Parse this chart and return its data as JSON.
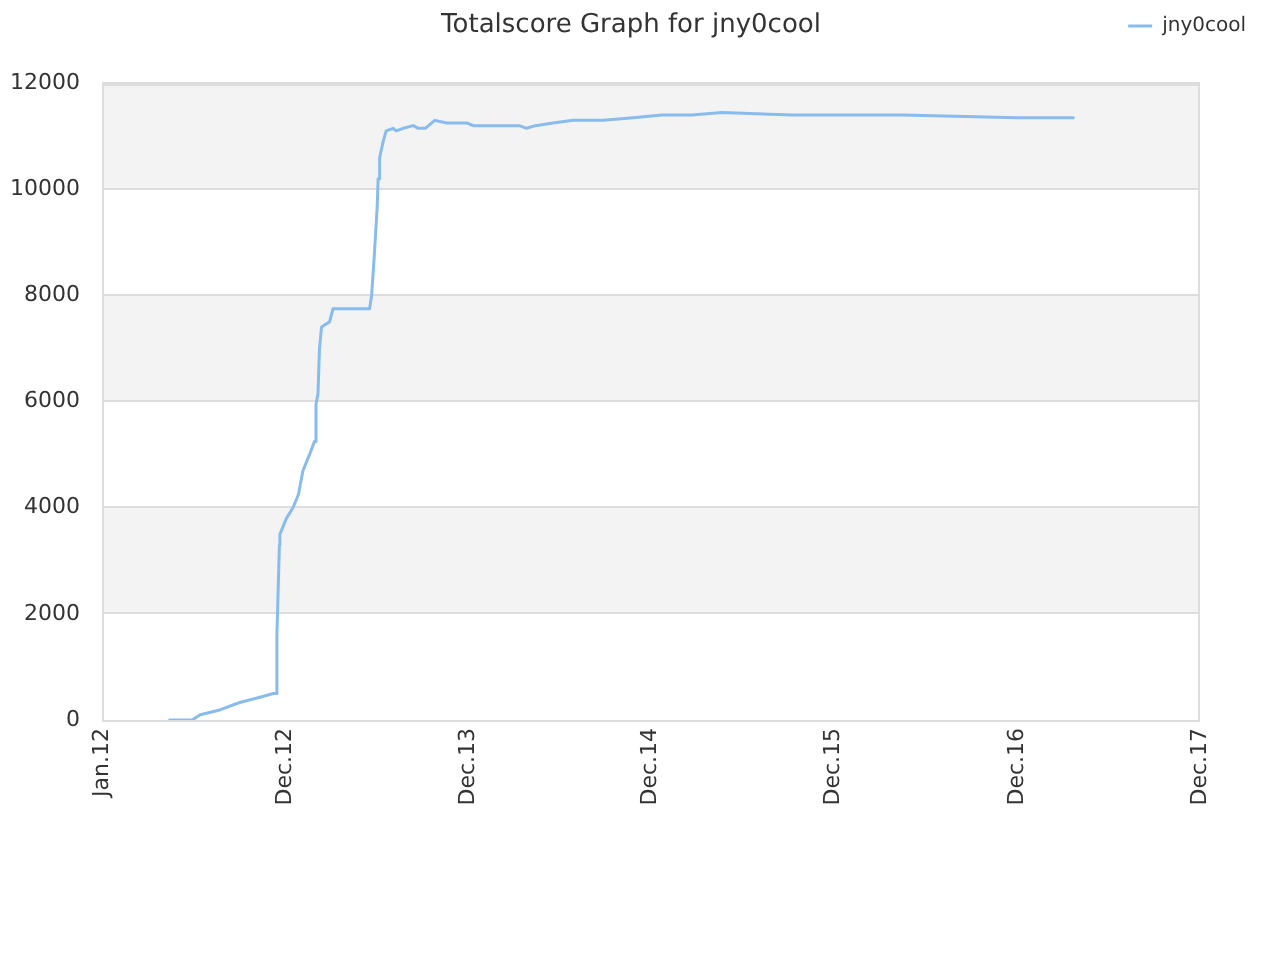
{
  "chart_data": {
    "type": "line",
    "title": "Totalscore Graph for jny0cool",
    "x": [
      "2012-05-15",
      "2012-06-29",
      "2012-07-15",
      "2012-08-23",
      "2012-10-02",
      "2012-11-11",
      "2012-12-08",
      "2012-12-14",
      "2012-12-15",
      "2012-12-20",
      "2012-12-21",
      "2013-01-03",
      "2013-01-16",
      "2013-01-27",
      "2013-02-05",
      "2013-02-18",
      "2013-02-28",
      "2013-03-03",
      "2013-03-07",
      "2013-03-10",
      "2013-03-14",
      "2013-03-21",
      "2013-03-30",
      "2013-04-06",
      "2013-06-18",
      "2013-06-22",
      "2013-06-27",
      "2013-07-03",
      "2013-07-05",
      "2013-07-08",
      "2013-07-15",
      "2013-07-21",
      "2013-08-04",
      "2013-08-10",
      "2013-08-24",
      "2013-09-13",
      "2013-09-23",
      "2013-10-07",
      "2013-10-26",
      "2013-11-19",
      "2013-12-29",
      "2014-01-11",
      "2014-04-13",
      "2014-04-27",
      "2014-05-15",
      "2014-06-19",
      "2014-07-29",
      "2014-09-27",
      "2014-11-26",
      "2015-01-22",
      "2015-03-23",
      "2015-05-22",
      "2015-10-09",
      "2016-05-18",
      "2016-12-30",
      "2017-04-22"
    ],
    "series": [
      {
        "name": "jny0cool",
        "color": "#88bbee",
        "values": [
          0,
          0,
          100,
          190,
          330,
          430,
          500,
          500,
          1600,
          3300,
          3500,
          3800,
          4000,
          4250,
          4700,
          5000,
          5250,
          5950,
          6150,
          7000,
          7400,
          7450,
          7500,
          7750,
          7750,
          8000,
          8700,
          9650,
          10200,
          10600,
          10900,
          11100,
          11150,
          11100,
          11150,
          11200,
          11150,
          11150,
          11300,
          11250,
          11250,
          11200,
          11200,
          11150,
          11200,
          11250,
          11300,
          11300,
          11350,
          11400,
          11400,
          11450,
          11400,
          11400,
          11350,
          11350
        ]
      }
    ],
    "xlim": [
      "2012-01-01",
      "2017-12-31"
    ],
    "xticks": [
      {
        "value": "2012-01-01",
        "label": "Jan.12"
      },
      {
        "value": "2012-12-31",
        "label": "Dec.12"
      },
      {
        "value": "2013-12-31",
        "label": "Dec.13"
      },
      {
        "value": "2014-12-31",
        "label": "Dec.14"
      },
      {
        "value": "2015-12-31",
        "label": "Dec.15"
      },
      {
        "value": "2016-12-31",
        "label": "Dec.16"
      },
      {
        "value": "2017-12-31",
        "label": "Dec.17"
      }
    ],
    "ylim": [
      0,
      12000
    ],
    "yticks": [
      0,
      2000,
      4000,
      6000,
      8000,
      10000,
      12000
    ],
    "grid": "y",
    "legend": "top right",
    "marker": "none",
    "line_style": "solid"
  }
}
